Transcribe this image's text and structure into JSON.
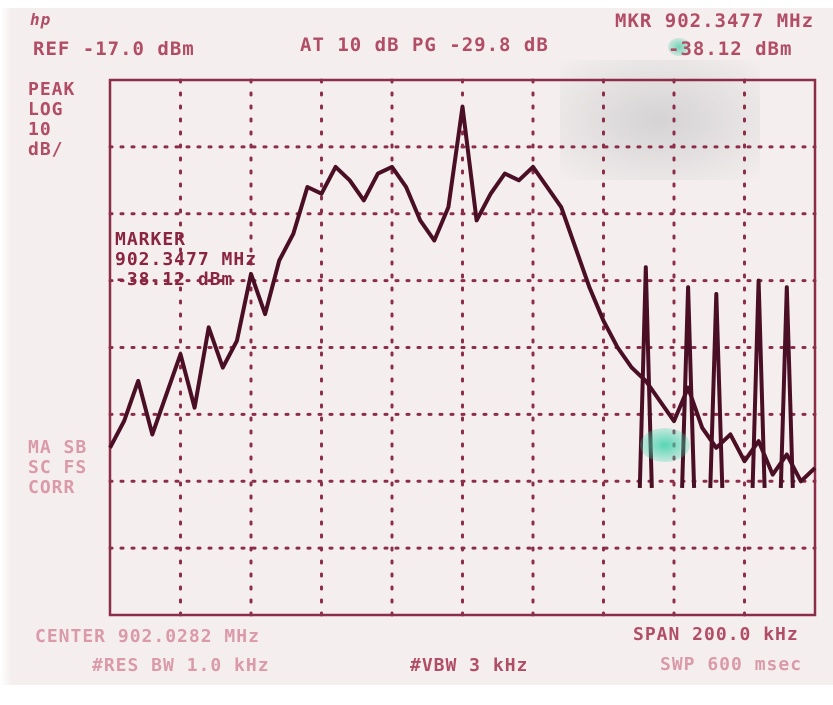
{
  "header": {
    "ref_level": "REF -17.0 dBm",
    "attenuation": "AT 10 dB PG -29.8 dB",
    "marker_freq": "MKR 902.3477 MHz",
    "marker_level": "-38.12 dBm",
    "logo": "hp"
  },
  "side_labels": {
    "mode": [
      "PEAK",
      "LOG",
      "10",
      "dB/"
    ],
    "lower": [
      "MA SB",
      "SC FS",
      "CORR"
    ]
  },
  "marker_readout": [
    "MARKER",
    "902.3477 MHz",
    "-38.12 dBm"
  ],
  "footer": {
    "center": "CENTER 902.0282 MHz",
    "span": "SPAN 200.0 kHz",
    "rbw": "#RES BW 1.0 kHz",
    "vbw": "#VBW 3 kHz",
    "sweep": "SWP 600 msec"
  },
  "colors": {
    "screen_bg": "#f4eeee",
    "graticule": "#8c2d4a",
    "trace": "#4a0f24",
    "marker_glow": "#3cd2aa"
  },
  "chart_data": {
    "type": "line",
    "xlabel": "",
    "ylabel": "",
    "x_unit": "MHz",
    "y_unit": "dBm",
    "xlim": [
      901.9282,
      902.1282
    ],
    "ylim": [
      -97.0,
      -17.0
    ],
    "grid": true,
    "series": [
      {
        "x": [
          901.9282,
          901.9322,
          901.9362,
          901.9402,
          901.9442,
          901.9482,
          901.9522,
          901.9562,
          901.9602,
          901.9642,
          901.9682,
          901.9722,
          901.9762,
          901.9802,
          901.9842,
          901.9882,
          901.9922,
          901.9962,
          902.0002,
          902.0042,
          902.0082,
          902.0122,
          902.0162,
          902.0202,
          902.0242,
          902.0282,
          902.0322,
          902.0362,
          902.0402,
          902.0442,
          902.0482,
          902.0522,
          902.0562,
          902.0602,
          902.0642,
          902.0682,
          902.0722,
          902.0762,
          902.0802,
          902.0842,
          902.0882,
          902.0922,
          902.0962,
          902.1002,
          902.1042,
          902.1082,
          902.1122,
          902.1162,
          902.1202,
          902.1242,
          902.1282
        ],
        "y": [
          -72,
          -68,
          -62,
          -70,
          -64,
          -58,
          -66,
          -54,
          -60,
          -56,
          -46,
          -52,
          -44,
          -40,
          -33,
          -34,
          -30,
          -32,
          -35,
          -31,
          -30,
          -33,
          -38,
          -41,
          -36,
          -21,
          -38,
          -34,
          -31,
          -32,
          -30,
          -33,
          -36,
          -42,
          -48,
          -53,
          -57,
          -60,
          -62,
          -65,
          -68,
          -63,
          -69,
          -72,
          -70,
          -74,
          -71,
          -76,
          -73,
          -77,
          -75
        ]
      }
    ],
    "spurs": [
      {
        "x": 902.0802,
        "y": -45
      },
      {
        "x": 902.0922,
        "y": -48
      },
      {
        "x": 902.1002,
        "y": -49
      },
      {
        "x": 902.1122,
        "y": -47
      },
      {
        "x": 902.1202,
        "y": -48
      }
    ],
    "marker": {
      "x": 902.3477,
      "y": -38.12
    }
  }
}
